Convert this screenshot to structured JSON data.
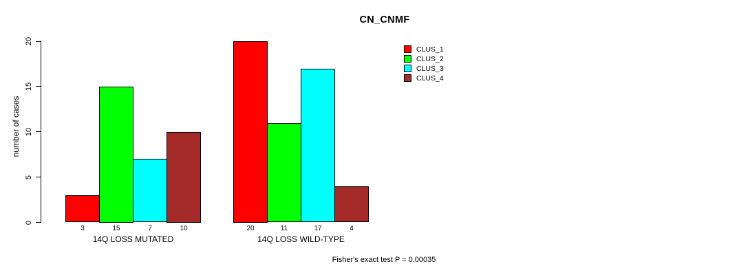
{
  "chart_data": {
    "type": "bar",
    "title": "CN_CNMF",
    "ylabel": "number of cases",
    "xlabel": "",
    "ylim": [
      0,
      20
    ],
    "yticks": [
      0,
      5,
      10,
      15,
      20
    ],
    "grid": false,
    "legend_position": "right-top",
    "categories": [
      "14Q LOSS MUTATED",
      "14Q LOSS WILD-TYPE"
    ],
    "series": [
      {
        "name": "CLUS_1",
        "color": "#FF0000",
        "values": [
          3,
          20
        ]
      },
      {
        "name": "CLUS_2",
        "color": "#00FF00",
        "values": [
          15,
          11
        ]
      },
      {
        "name": "CLUS_3",
        "color": "#00FFFF",
        "values": [
          7,
          17
        ]
      },
      {
        "name": "CLUS_4",
        "color": "#A52A2A",
        "values": [
          10,
          4
        ]
      }
    ],
    "bar_value_labels": [
      [
        3,
        15,
        7,
        10
      ],
      [
        20,
        11,
        17,
        4
      ]
    ],
    "annotation": "Fisher's exact test P = 0.00035",
    "axis_color": "#000000",
    "background_color": "#FFFFFF"
  }
}
